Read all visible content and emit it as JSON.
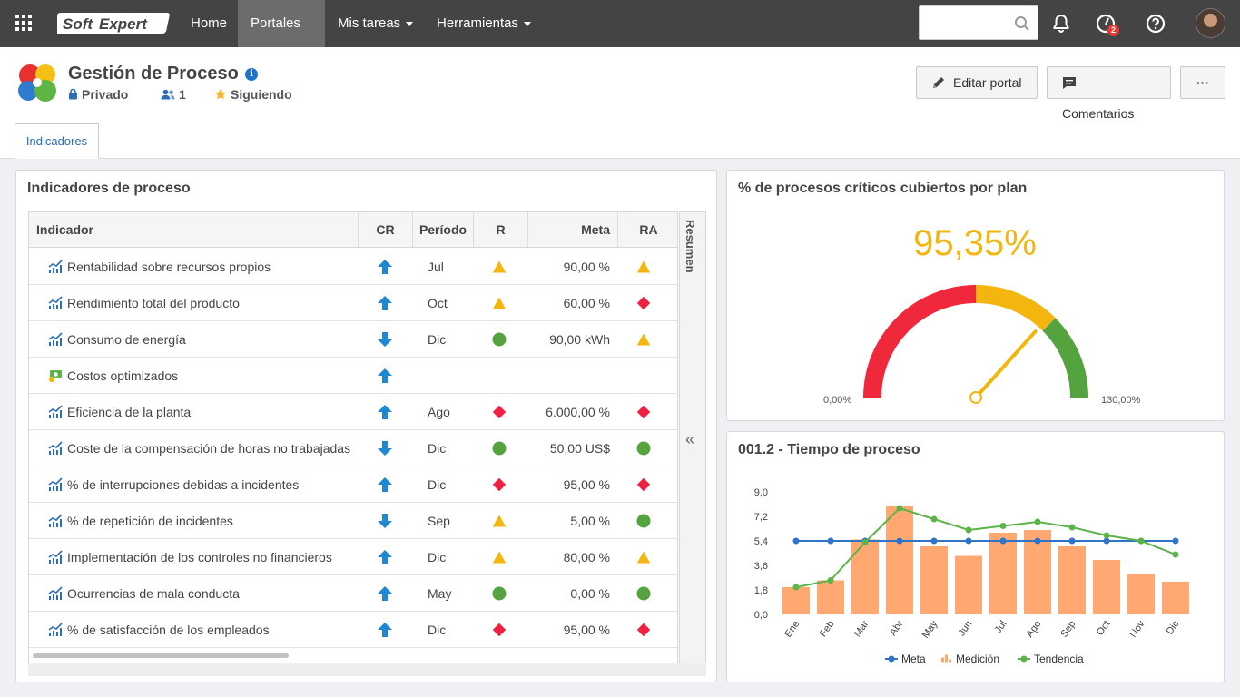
{
  "topbar": {
    "logo_text": "SoftExpert",
    "nav": [
      {
        "label": "Home"
      },
      {
        "label": "Portales"
      },
      {
        "label": "Mis tareas"
      },
      {
        "label": "Herramientas"
      }
    ],
    "search_placeholder": "",
    "notification_badge": "2"
  },
  "header": {
    "title": "Gestión de Proceso",
    "privacy": "Privado",
    "members": "1",
    "follow": "Siguiendo",
    "edit_button": "Editar portal",
    "comments_button": "Comentarios",
    "more_button": "···",
    "tab": "Indicadores"
  },
  "indicators": {
    "title": "Indicadores de proceso",
    "columns": {
      "indicator": "Indicador",
      "cr": "CR",
      "period": "Período",
      "r": "R",
      "meta": "Meta",
      "ra": "RA"
    },
    "side_label": "Resumen",
    "collapse": "«",
    "rows": [
      {
        "name": "Rentabilidad sobre recursos propios",
        "icon": "trend-icon",
        "cr": "up",
        "period": "Jul",
        "r": "yellow-triangle",
        "meta": "90,00 %",
        "ra": "yellow-triangle"
      },
      {
        "name": "Rendimiento total del producto",
        "icon": "trend-icon",
        "cr": "up",
        "period": "Oct",
        "r": "yellow-triangle",
        "meta": "60,00 %",
        "ra": "red-diamond"
      },
      {
        "name": "Consumo de energía",
        "icon": "trend-icon",
        "cr": "down",
        "period": "Dic",
        "r": "green-circle",
        "meta": "90,00 kWh",
        "ra": "yellow-triangle"
      },
      {
        "name": "Costos optimizados",
        "icon": "money-icon",
        "cr": "up",
        "period": "",
        "r": "",
        "meta": "",
        "ra": ""
      },
      {
        "name": "Eficiencia de la planta",
        "icon": "trend-icon",
        "cr": "up",
        "period": "Ago",
        "r": "red-diamond",
        "meta": "6.000,00 %",
        "ra": "red-diamond"
      },
      {
        "name": "Coste de la compensación de horas no trabajadas",
        "icon": "trend-icon",
        "cr": "down",
        "period": "Dic",
        "r": "green-circle",
        "meta": "50,00 US$",
        "ra": "green-circle"
      },
      {
        "name": "% de interrupciones debidas a incidentes",
        "icon": "trend-icon",
        "cr": "up",
        "period": "Dic",
        "r": "red-diamond",
        "meta": "95,00 %",
        "ra": "red-diamond"
      },
      {
        "name": "% de repetición de incidentes",
        "icon": "trend-icon",
        "cr": "down",
        "period": "Sep",
        "r": "yellow-triangle",
        "meta": "5,00 %",
        "ra": "green-circle"
      },
      {
        "name": "Implementación de los controles no financieros",
        "icon": "trend-icon",
        "cr": "up",
        "period": "Dic",
        "r": "yellow-triangle",
        "meta": "80,00 %",
        "ra": "yellow-triangle"
      },
      {
        "name": "Ocurrencias de mala conducta",
        "icon": "trend-icon",
        "cr": "up",
        "period": "May",
        "r": "green-circle",
        "meta": "0,00 %",
        "ra": "green-circle"
      },
      {
        "name": "% de satisfacción de los empleados",
        "icon": "trend-icon",
        "cr": "up",
        "period": "Dic",
        "r": "red-diamond",
        "meta": "95,00 %",
        "ra": "red-diamond"
      }
    ]
  },
  "gauge": {
    "title": "% de procesos críticos cubiertos por plan",
    "value_text": "95,35%",
    "value": 95.35,
    "min": 0,
    "max": 130,
    "min_label": "0,00%",
    "max_label": "130,00%",
    "bands": [
      {
        "from": 0,
        "to": 65,
        "color": "#f0283c"
      },
      {
        "from": 65,
        "to": 97.5,
        "color": "#f2b60f"
      },
      {
        "from": 97.5,
        "to": 130,
        "color": "#55a33f"
      }
    ],
    "needle_color": "#f2b60f"
  },
  "chart_data": {
    "type": "bar",
    "title": "001.2 - Tiempo de proceso",
    "categories": [
      "Ene",
      "Feb",
      "Mar",
      "Abr",
      "May",
      "Jun",
      "Jul",
      "Ago",
      "Sep",
      "Oct",
      "Nov",
      "Dic"
    ],
    "series": [
      {
        "name": "Meta",
        "type": "line",
        "color": "#2e74c9",
        "values": [
          5.4,
          5.4,
          5.4,
          5.4,
          5.4,
          5.4,
          5.4,
          5.4,
          5.4,
          5.4,
          5.4,
          5.4
        ]
      },
      {
        "name": "Medición",
        "type": "bar",
        "color": "#ffa872",
        "values": [
          2.0,
          2.5,
          5.5,
          8.0,
          5.0,
          4.3,
          6.0,
          6.2,
          5.0,
          4.0,
          3.0,
          2.4
        ]
      },
      {
        "name": "Tendencia",
        "type": "line",
        "color": "#5cb448",
        "values": [
          2.0,
          2.5,
          5.3,
          7.8,
          7.0,
          6.2,
          6.5,
          6.8,
          6.4,
          5.8,
          5.4,
          4.4
        ]
      }
    ],
    "y_ticks": [
      "0,0",
      "1,8",
      "3,6",
      "5,4",
      "7,2",
      "9,0"
    ],
    "ylim": [
      0,
      9
    ],
    "legend": "bottom"
  }
}
